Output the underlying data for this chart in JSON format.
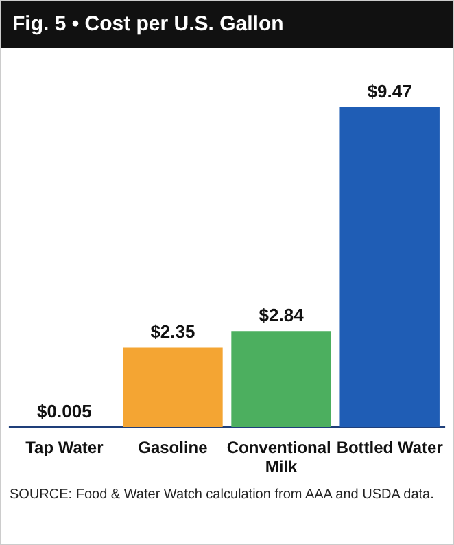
{
  "chart_data": {
    "type": "bar",
    "title": "Fig. 5 • Cost per U.S. Gallon",
    "categories": [
      "Tap Water",
      "Gasoline",
      "Conventional Milk",
      "Bottled Water"
    ],
    "values": [
      0.005,
      2.35,
      2.84,
      9.47
    ],
    "colors": [
      "#1f3f7a",
      "#f4a533",
      "#4caf5f",
      "#1f5db5"
    ],
    "value_labels": [
      "$0.005",
      "$2.35",
      "$2.84",
      "$9.47"
    ],
    "annotations": [
      "SOURCE: Food & Water Watch calculation from AAA and USDA data."
    ]
  }
}
